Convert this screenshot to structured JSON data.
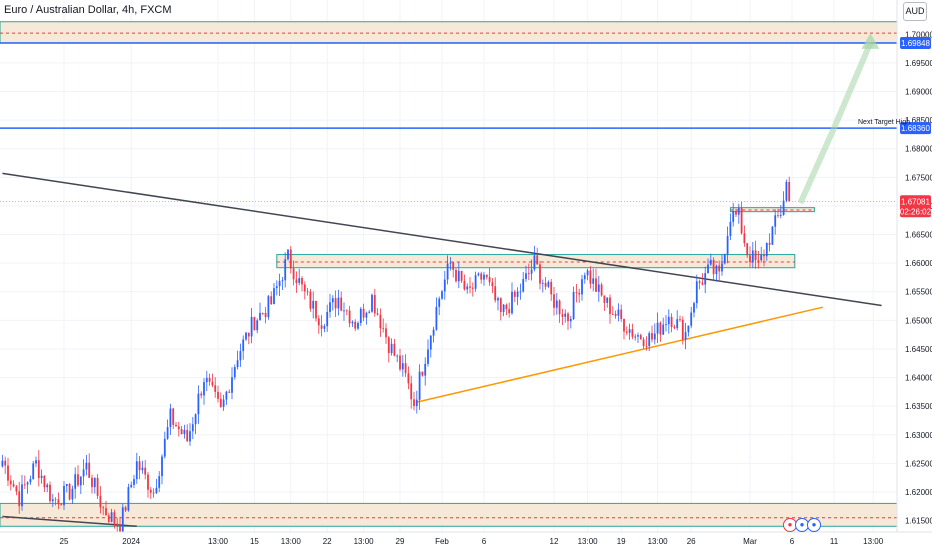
{
  "header": {
    "title": "Euro / Australian Dollar, 4h, FXCM",
    "currency": "AUD"
  },
  "chart_data": {
    "type": "candlestick",
    "symbol": "EURAUD",
    "timeframe": "4h",
    "ylim": [
      1.613,
      1.706
    ],
    "y_ticks": [
      1.615,
      1.62,
      1.625,
      1.63,
      1.635,
      1.64,
      1.645,
      1.65,
      1.655,
      1.66,
      1.665,
      1.67,
      1.675,
      1.68,
      1.685,
      1.69,
      1.695,
      1.7
    ],
    "x_ticks": [
      {
        "label": "25",
        "bar": 22
      },
      {
        "label": "2024",
        "bar": 46
      },
      {
        "label": "13:00",
        "bar": 77
      },
      {
        "label": "15",
        "bar": 90
      },
      {
        "label": "13:00",
        "bar": 103
      },
      {
        "label": "22",
        "bar": 116
      },
      {
        "label": "13:00",
        "bar": 129
      },
      {
        "label": "29",
        "bar": 142
      },
      {
        "label": "Feb",
        "bar": 157
      },
      {
        "label": "6",
        "bar": 172
      },
      {
        "label": "12",
        "bar": 197
      },
      {
        "label": "13:00",
        "bar": 209
      },
      {
        "label": "19",
        "bar": 221
      },
      {
        "label": "13:00",
        "bar": 234
      },
      {
        "label": "26",
        "bar": 246
      },
      {
        "label": "Mar",
        "bar": 267
      },
      {
        "label": "6",
        "bar": 282
      },
      {
        "label": "11",
        "bar": 297
      },
      {
        "label": "13:00",
        "bar": 311
      }
    ],
    "anchors": [
      [
        0,
        1.6255
      ],
      [
        6,
        1.619
      ],
      [
        12,
        1.625
      ],
      [
        18,
        1.6185
      ],
      [
        24,
        1.62
      ],
      [
        30,
        1.6245
      ],
      [
        36,
        1.617
      ],
      [
        42,
        1.614
      ],
      [
        48,
        1.625
      ],
      [
        54,
        1.62
      ],
      [
        60,
        1.633
      ],
      [
        66,
        1.629
      ],
      [
        72,
        1.64
      ],
      [
        78,
        1.634
      ],
      [
        84,
        1.644
      ],
      [
        90,
        1.65
      ],
      [
        96,
        1.653
      ],
      [
        102,
        1.661
      ],
      [
        108,
        1.6545
      ],
      [
        114,
        1.65
      ],
      [
        120,
        1.654
      ],
      [
        126,
        1.6495
      ],
      [
        132,
        1.654
      ],
      [
        138,
        1.646
      ],
      [
        144,
        1.64
      ],
      [
        147,
        1.6355
      ],
      [
        152,
        1.646
      ],
      [
        156,
        1.654
      ],
      [
        160,
        1.66
      ],
      [
        166,
        1.6545
      ],
      [
        172,
        1.658
      ],
      [
        178,
        1.651
      ],
      [
        184,
        1.6545
      ],
      [
        190,
        1.66
      ],
      [
        196,
        1.654
      ],
      [
        202,
        1.6505
      ],
      [
        208,
        1.659
      ],
      [
        214,
        1.654
      ],
      [
        220,
        1.6505
      ],
      [
        226,
        1.6475
      ],
      [
        232,
        1.6468
      ],
      [
        238,
        1.651
      ],
      [
        244,
        1.6478
      ],
      [
        248,
        1.656
      ],
      [
        253,
        1.659
      ],
      [
        256,
        1.6575
      ],
      [
        260,
        1.6685
      ],
      [
        263,
        1.668
      ],
      [
        266,
        1.662
      ],
      [
        270,
        1.6595
      ],
      [
        274,
        1.6645
      ],
      [
        278,
        1.669
      ],
      [
        280,
        1.674
      ],
      [
        281,
        1.6708
      ]
    ],
    "last_price": "1.67081",
    "countdown": "02:26:02",
    "price_labels": [
      {
        "price": 1.69848,
        "text": "1.69848"
      },
      {
        "price": 1.6836,
        "text": "1.68360"
      }
    ],
    "annotations": [
      "Next Target High"
    ],
    "zones": [
      {
        "top": 1.7022,
        "bottom": 1.6985,
        "mid": 1.7002
      },
      {
        "top": 1.6615,
        "bottom": 1.6592,
        "mid": 1.6602
      },
      {
        "top": 1.6697,
        "bottom": 1.669,
        "mid": 1.6693
      },
      {
        "top": 1.618,
        "bottom": 1.614,
        "mid": 1.6155
      }
    ],
    "trendlines": [
      {
        "name": "descending-resistance",
        "from": {
          "bar": 0,
          "price": 1.6757
        },
        "to": {
          "bar": 314,
          "price": 1.6526
        },
        "color": "#434651"
      },
      {
        "name": "ascending-support",
        "from": {
          "bar": 148,
          "price": 1.6357
        },
        "to": {
          "bar": 293,
          "price": 1.6523
        },
        "color": "#ff9800"
      },
      {
        "name": "lower-trendline",
        "from": {
          "bar": 0,
          "price": 1.6157
        },
        "to": {
          "bar": 48,
          "price": 1.614
        },
        "color": "#434651"
      }
    ],
    "projection": {
      "from": {
        "bar": 285,
        "price": 1.6705
      },
      "mid": {
        "bar": 297,
        "price": 1.6836
      },
      "to": {
        "bar": 310,
        "price": 1.6985
      },
      "color": "#a5d6a7"
    },
    "colors": {
      "up": "#2962ff",
      "down": "#f23645",
      "zone_fill": "#f7e9d7",
      "zone_border": "#26a69a",
      "hline": "#2962ff",
      "grid": "#f0f3fa"
    }
  }
}
